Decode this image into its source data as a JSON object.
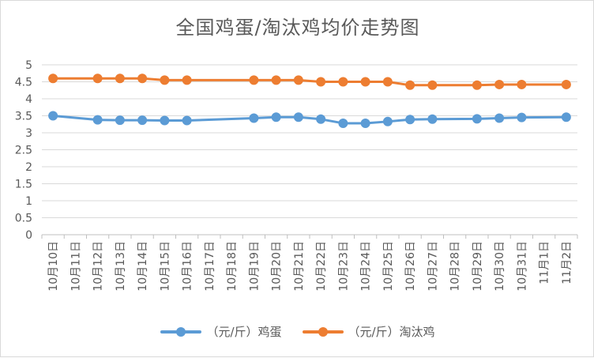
{
  "chart_data": {
    "type": "line",
    "title": "全国鸡蛋/淘汰鸡均价走势图",
    "xlabel": "",
    "ylabel": "",
    "ylim": [
      0,
      5
    ],
    "yticks": [
      "0",
      "0.5",
      "1",
      "1.5",
      "2",
      "2.5",
      "3",
      "3.5",
      "4",
      "4.5",
      "5"
    ],
    "categories": [
      "10月10日",
      "10月11日",
      "10月12日",
      "10月13日",
      "10月14日",
      "10月15日",
      "10月16日",
      "10月17日",
      "10月18日",
      "10月19日",
      "10月20日",
      "10月21日",
      "10月22日",
      "10月23日",
      "10月24日",
      "10月25日",
      "10月26日",
      "10月27日",
      "10月28日",
      "10月29日",
      "10月30日",
      "10月31日",
      "11月1日",
      "11月2日"
    ],
    "grid": true,
    "legend_position": "bottom",
    "series": [
      {
        "name": "（元/斤）鸡蛋",
        "color": "#5b9bd5",
        "values": [
          3.5,
          null,
          3.38,
          3.37,
          3.37,
          3.36,
          3.36,
          null,
          null,
          3.43,
          3.46,
          3.46,
          3.4,
          3.28,
          3.28,
          3.33,
          3.39,
          3.4,
          null,
          3.41,
          3.43,
          3.45,
          null,
          3.46
        ]
      },
      {
        "name": "（元/斤）淘汰鸡",
        "color": "#ed7d31",
        "values": [
          4.6,
          null,
          4.6,
          4.6,
          4.6,
          4.55,
          4.55,
          null,
          null,
          4.55,
          4.55,
          4.55,
          4.5,
          4.5,
          4.5,
          4.5,
          4.4,
          4.4,
          null,
          4.4,
          4.42,
          4.42,
          null,
          4.42
        ]
      }
    ]
  }
}
